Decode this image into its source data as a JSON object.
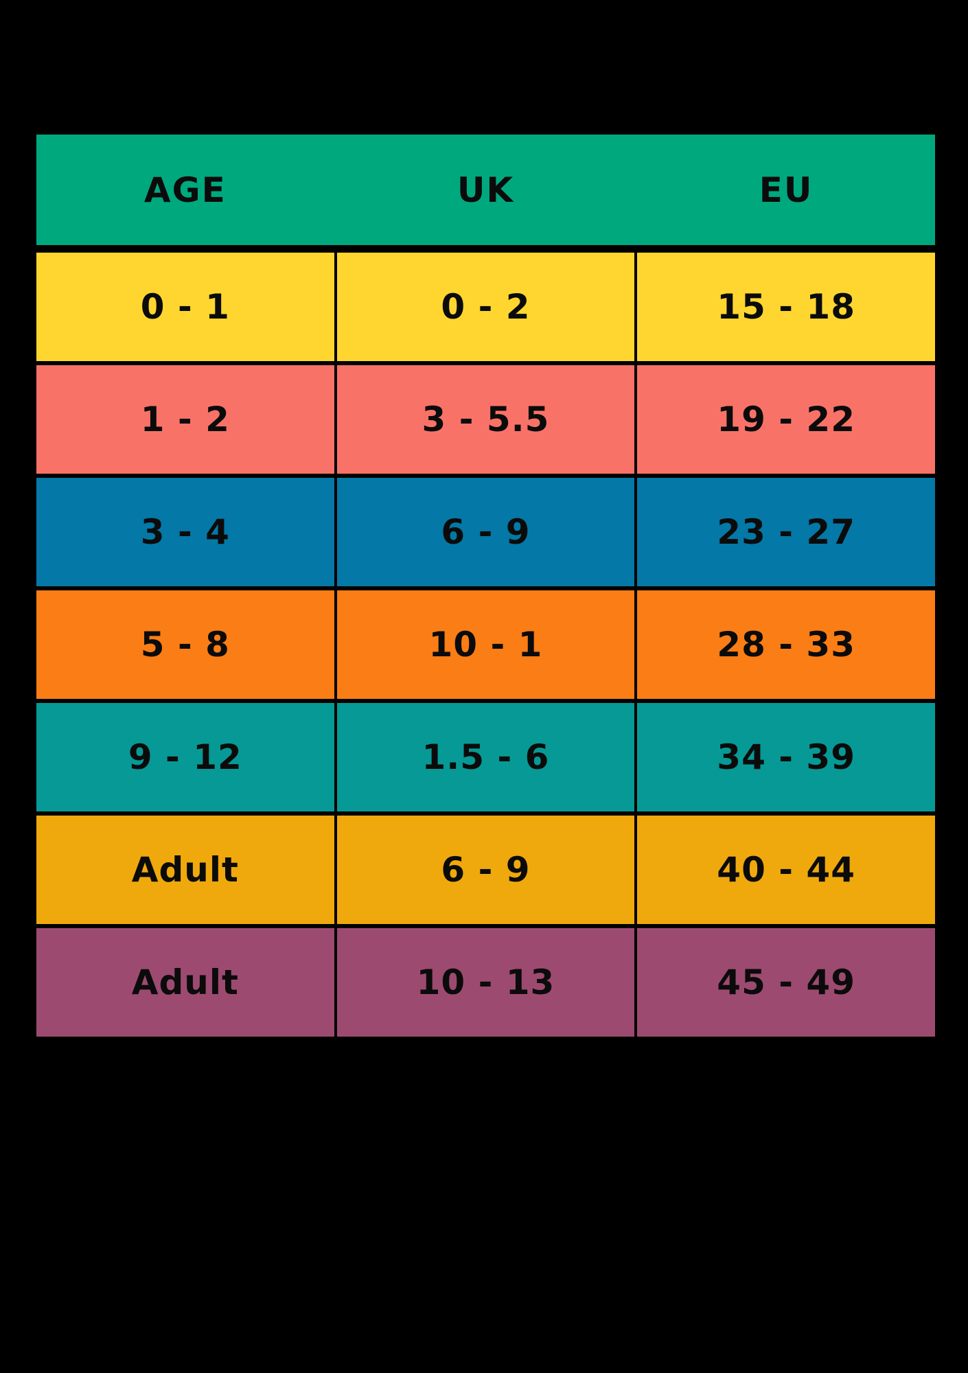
{
  "page": {
    "background_color": "#000000",
    "text_color": "#0b0b0b"
  },
  "table": {
    "header": {
      "bg": "#00A87E",
      "columns": [
        "AGE",
        "UK",
        "EU"
      ]
    },
    "rows": [
      {
        "bg": "#FED62F",
        "cells": [
          "0 - 1",
          "0 - 2",
          "15 - 18"
        ]
      },
      {
        "bg": "#F97268",
        "cells": [
          "1 - 2",
          "3 - 5.5",
          "19 - 22"
        ]
      },
      {
        "bg": "#0478A6",
        "cells": [
          "3 - 4",
          "6 - 9",
          "23 - 27"
        ]
      },
      {
        "bg": "#FB7D15",
        "cells": [
          "5 - 8",
          "10 - 1",
          "28 - 33"
        ]
      },
      {
        "bg": "#079995",
        "cells": [
          "9 - 12",
          "1.5 - 6",
          "34 - 39"
        ]
      },
      {
        "bg": "#F0A90C",
        "cells": [
          "Adult",
          "6 - 9",
          "40 - 44"
        ]
      },
      {
        "bg": "#9D4A71",
        "cells": [
          "Adult",
          "10 - 13",
          "45 - 49"
        ]
      }
    ]
  },
  "chart_data": {
    "type": "table",
    "title": "",
    "columns": [
      "AGE",
      "UK",
      "EU"
    ],
    "rows": [
      [
        "0 - 1",
        "0 - 2",
        "15 - 18"
      ],
      [
        "1 - 2",
        "3 - 5.5",
        "19 - 22"
      ],
      [
        "3 - 4",
        "6 - 9",
        "23 - 27"
      ],
      [
        "5 - 8",
        "10 - 1",
        "28 - 33"
      ],
      [
        "9 - 12",
        "1.5 - 6",
        "34 - 39"
      ],
      [
        "Adult",
        "6 - 9",
        "40 - 44"
      ],
      [
        "Adult",
        "10 - 13",
        "45 - 49"
      ]
    ],
    "row_colors": [
      "#FED62F",
      "#F97268",
      "#0478A6",
      "#FB7D15",
      "#079995",
      "#F0A90C",
      "#9D4A71"
    ],
    "header_color": "#00A87E",
    "layout": {
      "grid_gap_color": "#000000",
      "legend": "none"
    }
  }
}
